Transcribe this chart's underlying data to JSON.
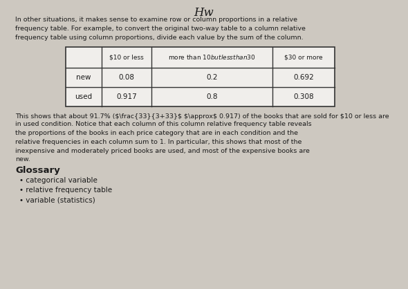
{
  "hw_label": "Hw",
  "paragraph1": "In other situations, it makes sense to examine row or column proportions in a relative\nfrequency table. For example, to convert the original two-way table to a column relative\nfrequency table using column proportions, divide each value by the sum of the column.",
  "col_headers": [
    "$10 or less",
    "more than $10 but less than $30",
    "$30 or more"
  ],
  "row_headers": [
    "new",
    "used"
  ],
  "table_data": [
    [
      "0.08",
      "0.2",
      "0.692"
    ],
    [
      "0.917",
      "0.8",
      "0.308"
    ]
  ],
  "para2_line1": "This shows that about 91.7% (",
  "para2_frac_num": "33",
  "para2_frac_den": "3+33",
  "para2_rest": " ≈ 0.917) of the books that are sold for $10 or less are",
  "para2_lines": [
    "in used condition. Notice that each column of this column relative frequency table reveals",
    "the proportions of the books in each price category that are in each condition and the",
    "relative frequencies in each column sum to 1. In particular, this shows that most of the",
    "inexpensive and moderately priced books are used, and most of the expensive books are",
    "new."
  ],
  "glossary_title": "Glossary",
  "glossary_items": [
    "categorical variable",
    "relative frequency table",
    "variable (statistics)"
  ],
  "bg_color": "#cdc8c0",
  "text_color": "#1a1a1a",
  "table_bg": "#f0eeeb",
  "border_color": "#333333"
}
